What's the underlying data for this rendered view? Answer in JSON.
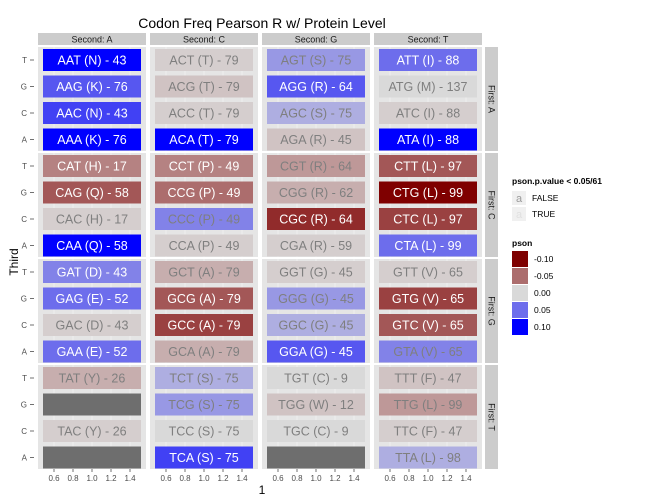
{
  "chart_data": {
    "type": "heatmap",
    "title": "Codon Freq Pearson R w/ Protein Level",
    "xlabel": "1",
    "ylabel": "Third",
    "x_ticks": [
      "0.6",
      "0.8",
      "1.0",
      "1.2",
      "1.4"
    ],
    "col_facets": [
      "Second: A",
      "Second: C",
      "Second: G",
      "Second: T"
    ],
    "row_facets": [
      "First: A",
      "First: C",
      "First: G",
      "First: T"
    ],
    "third_levels": [
      "T",
      "G",
      "C",
      "A"
    ],
    "cells": [
      {
        "first": "A",
        "second": "A",
        "third": "T",
        "label": "AAT (N) - 43",
        "pson": 0.1,
        "significant": true
      },
      {
        "first": "A",
        "second": "A",
        "third": "G",
        "label": "AAG (K) - 76",
        "pson": 0.06,
        "significant": true
      },
      {
        "first": "A",
        "second": "A",
        "third": "C",
        "label": "AAC (N) - 43",
        "pson": 0.07,
        "significant": true
      },
      {
        "first": "A",
        "second": "A",
        "third": "A",
        "label": "AAA (K) - 76",
        "pson": 0.1,
        "significant": true
      },
      {
        "first": "A",
        "second": "C",
        "third": "T",
        "label": "ACT (T) - 79",
        "pson": -0.005,
        "significant": false
      },
      {
        "first": "A",
        "second": "C",
        "third": "G",
        "label": "ACG (T) - 79",
        "pson": -0.01,
        "significant": false
      },
      {
        "first": "A",
        "second": "C",
        "third": "C",
        "label": "ACC (T) - 79",
        "pson": -0.005,
        "significant": false
      },
      {
        "first": "A",
        "second": "C",
        "third": "A",
        "label": "ACA (T) - 79",
        "pson": 0.1,
        "significant": true
      },
      {
        "first": "A",
        "second": "G",
        "third": "T",
        "label": "AGT (S) - 75",
        "pson": 0.03,
        "significant": false
      },
      {
        "first": "A",
        "second": "G",
        "third": "G",
        "label": "AGG (R) - 64",
        "pson": 0.06,
        "significant": true
      },
      {
        "first": "A",
        "second": "G",
        "third": "C",
        "label": "AGC (S) - 75",
        "pson": 0.02,
        "significant": false
      },
      {
        "first": "A",
        "second": "G",
        "third": "A",
        "label": "AGA (R) - 45",
        "pson": -0.01,
        "significant": false
      },
      {
        "first": "A",
        "second": "T",
        "third": "T",
        "label": "ATT (I) - 88",
        "pson": 0.05,
        "significant": true
      },
      {
        "first": "A",
        "second": "T",
        "third": "G",
        "label": "ATG (M) - 137",
        "pson": 0.0,
        "significant": false
      },
      {
        "first": "A",
        "second": "T",
        "third": "C",
        "label": "ATC (I) - 88",
        "pson": -0.005,
        "significant": false
      },
      {
        "first": "A",
        "second": "T",
        "third": "A",
        "label": "ATA (I) - 88",
        "pson": 0.1,
        "significant": true
      },
      {
        "first": "C",
        "second": "A",
        "third": "T",
        "label": "CAT (H) - 17",
        "pson": -0.04,
        "significant": true
      },
      {
        "first": "C",
        "second": "A",
        "third": "G",
        "label": "CAG (Q) - 58",
        "pson": -0.06,
        "significant": true
      },
      {
        "first": "C",
        "second": "A",
        "third": "C",
        "label": "CAC (H) - 17",
        "pson": -0.005,
        "significant": false
      },
      {
        "first": "C",
        "second": "A",
        "third": "A",
        "label": "CAA (Q) - 58",
        "pson": 0.1,
        "significant": true
      },
      {
        "first": "C",
        "second": "C",
        "third": "T",
        "label": "CCT (P) - 49",
        "pson": -0.04,
        "significant": true
      },
      {
        "first": "C",
        "second": "C",
        "third": "G",
        "label": "CCG (P) - 49",
        "pson": -0.05,
        "significant": true
      },
      {
        "first": "C",
        "second": "C",
        "third": "C",
        "label": "CCC (P) - 49",
        "pson": 0.04,
        "significant": false
      },
      {
        "first": "C",
        "second": "C",
        "third": "A",
        "label": "CCA (P) - 49",
        "pson": -0.005,
        "significant": false
      },
      {
        "first": "C",
        "second": "G",
        "third": "T",
        "label": "CGT (R) - 64",
        "pson": -0.03,
        "significant": false
      },
      {
        "first": "C",
        "second": "G",
        "third": "G",
        "label": "CGG (R) - 62",
        "pson": -0.02,
        "significant": false
      },
      {
        "first": "C",
        "second": "G",
        "third": "C",
        "label": "CGC (R) - 64",
        "pson": -0.08,
        "significant": true
      },
      {
        "first": "C",
        "second": "G",
        "third": "A",
        "label": "CGA (R) - 59",
        "pson": -0.005,
        "significant": false
      },
      {
        "first": "C",
        "second": "T",
        "third": "T",
        "label": "CTT (L) - 97",
        "pson": -0.06,
        "significant": true
      },
      {
        "first": "C",
        "second": "T",
        "third": "G",
        "label": "CTG (L) - 99",
        "pson": -0.1,
        "significant": true
      },
      {
        "first": "C",
        "second": "T",
        "third": "C",
        "label": "CTC (L) - 97",
        "pson": -0.07,
        "significant": true
      },
      {
        "first": "C",
        "second": "T",
        "third": "A",
        "label": "CTA (L) - 99",
        "pson": 0.05,
        "significant": true
      },
      {
        "first": "G",
        "second": "A",
        "third": "T",
        "label": "GAT (D) - 43",
        "pson": 0.04,
        "significant": true
      },
      {
        "first": "G",
        "second": "A",
        "third": "G",
        "label": "GAG (E) - 52",
        "pson": 0.05,
        "significant": true
      },
      {
        "first": "G",
        "second": "A",
        "third": "C",
        "label": "GAC (D) - 43",
        "pson": -0.005,
        "significant": false
      },
      {
        "first": "G",
        "second": "A",
        "third": "A",
        "label": "GAA (E) - 52",
        "pson": 0.05,
        "significant": true
      },
      {
        "first": "G",
        "second": "C",
        "third": "T",
        "label": "GCT (A) - 79",
        "pson": -0.02,
        "significant": false
      },
      {
        "first": "G",
        "second": "C",
        "third": "G",
        "label": "GCG (A) - 79",
        "pson": -0.06,
        "significant": true
      },
      {
        "first": "G",
        "second": "C",
        "third": "C",
        "label": "GCC (A) - 79",
        "pson": -0.07,
        "significant": true
      },
      {
        "first": "G",
        "second": "C",
        "third": "A",
        "label": "GCA (A) - 79",
        "pson": -0.02,
        "significant": false
      },
      {
        "first": "G",
        "second": "G",
        "third": "T",
        "label": "GGT (G) - 45",
        "pson": -0.005,
        "significant": false
      },
      {
        "first": "G",
        "second": "G",
        "third": "G",
        "label": "GGG (G) - 45",
        "pson": 0.03,
        "significant": false
      },
      {
        "first": "G",
        "second": "G",
        "third": "C",
        "label": "GGC (G) - 45",
        "pson": 0.02,
        "significant": false
      },
      {
        "first": "G",
        "second": "G",
        "third": "A",
        "label": "GGA (G) - 45",
        "pson": 0.06,
        "significant": true
      },
      {
        "first": "G",
        "second": "T",
        "third": "T",
        "label": "GTT (V) - 65",
        "pson": -0.005,
        "significant": false
      },
      {
        "first": "G",
        "second": "T",
        "third": "G",
        "label": "GTG (V) - 65",
        "pson": -0.07,
        "significant": true
      },
      {
        "first": "G",
        "second": "T",
        "third": "C",
        "label": "GTC (V) - 65",
        "pson": -0.06,
        "significant": true
      },
      {
        "first": "G",
        "second": "T",
        "third": "A",
        "label": "GTA (V) - 65",
        "pson": 0.04,
        "significant": false
      },
      {
        "first": "T",
        "second": "A",
        "third": "T",
        "label": "TAT (Y) - 26",
        "pson": -0.02,
        "significant": false
      },
      {
        "first": "T",
        "second": "A",
        "third": "G",
        "label": "",
        "pson": null,
        "significant": false
      },
      {
        "first": "T",
        "second": "A",
        "third": "C",
        "label": "TAC (Y) - 26",
        "pson": -0.005,
        "significant": false
      },
      {
        "first": "T",
        "second": "A",
        "third": "A",
        "label": "",
        "pson": null,
        "significant": false
      },
      {
        "first": "T",
        "second": "C",
        "third": "T",
        "label": "TCT (S) - 75",
        "pson": 0.02,
        "significant": false
      },
      {
        "first": "T",
        "second": "C",
        "third": "G",
        "label": "TCG (S) - 75",
        "pson": 0.03,
        "significant": false
      },
      {
        "first": "T",
        "second": "C",
        "third": "C",
        "label": "TCC (S) - 75",
        "pson": 0.0,
        "significant": false
      },
      {
        "first": "T",
        "second": "C",
        "third": "A",
        "label": "TCA (S) - 75",
        "pson": 0.07,
        "significant": true
      },
      {
        "first": "T",
        "second": "G",
        "third": "T",
        "label": "TGT (C) - 9",
        "pson": 0.0,
        "significant": false
      },
      {
        "first": "T",
        "second": "G",
        "third": "G",
        "label": "TGG (W) - 12",
        "pson": -0.01,
        "significant": false
      },
      {
        "first": "T",
        "second": "G",
        "third": "C",
        "label": "TGC (C) - 9",
        "pson": 0.0,
        "significant": false
      },
      {
        "first": "T",
        "second": "G",
        "third": "A",
        "label": "",
        "pson": null,
        "significant": false
      },
      {
        "first": "T",
        "second": "T",
        "third": "T",
        "label": "TTT (F) - 47",
        "pson": -0.01,
        "significant": false
      },
      {
        "first": "T",
        "second": "T",
        "third": "G",
        "label": "TTG (L) - 99",
        "pson": -0.03,
        "significant": false
      },
      {
        "first": "T",
        "second": "T",
        "third": "C",
        "label": "TTC (F) - 47",
        "pson": -0.005,
        "significant": false
      },
      {
        "first": "T",
        "second": "T",
        "third": "A",
        "label": "TTA (L) - 98",
        "pson": 0.02,
        "significant": false
      }
    ],
    "legend_alpha": {
      "title": "pson.p.value < 0.05/61",
      "entries": [
        {
          "key": "a",
          "label": "FALSE"
        },
        {
          "key": "a",
          "label": "TRUE"
        }
      ]
    },
    "legend_fill": {
      "title": "pson",
      "entries": [
        {
          "label": "-0.10",
          "value": -0.1
        },
        {
          "label": "-0.05",
          "value": -0.05
        },
        {
          "label": "0.00",
          "value": 0.0
        },
        {
          "label": "0.05",
          "value": 0.05
        },
        {
          "label": "0.10",
          "value": 0.1
        }
      ]
    },
    "colors": {
      "low": "#7f0000",
      "mid": "#d9d9d9",
      "high": "#0000ff",
      "na": "#6e6e6e",
      "strip": "#cccccc",
      "panel": "#e5e5e5",
      "text_sig": "#ffffff",
      "text_nonsig": "#7f7f7f"
    }
  }
}
